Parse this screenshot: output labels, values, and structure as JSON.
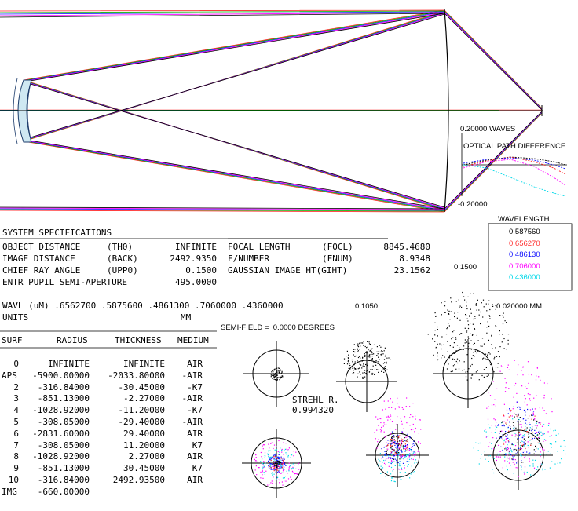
{
  "opd": {
    "top_label": "0.20000 WAVES",
    "title": "OPTICAL PATH DIFFERENCE",
    "bottom_label": "-0.20000"
  },
  "wavelength": {
    "title": "WAVELENGTH",
    "items": [
      {
        "value": "0.587560",
        "color": "#000000"
      },
      {
        "value": "0.656270",
        "color": "#ff3030"
      },
      {
        "value": "0.486130",
        "color": "#1010ff"
      },
      {
        "value": "0.706000",
        "color": "#ff00ff"
      },
      {
        "value": "0.436000",
        "color": "#00d8e8"
      }
    ]
  },
  "specs": {
    "title": "SYSTEM SPECIFICATIONS",
    "rows": [
      {
        "label": "OBJECT DISTANCE",
        "code": "(TH0)",
        "value": "INFINITE",
        "label2": "FOCAL LENGTH",
        "code2": "(FOCL)",
        "value2": "8845.4680"
      },
      {
        "label": "IMAGE DISTANCE",
        "code": "(BACK)",
        "value": "2492.9350",
        "label2": "F/NUMBER",
        "code2": "(FNUM)",
        "value2": "8.9348"
      },
      {
        "label": "CHIEF RAY ANGLE",
        "code": "(UPP0)",
        "value": "0.1500",
        "label2": "GAUSSIAN IMAGE HT(GIHT)",
        "code2": "",
        "value2": "23.1562"
      },
      {
        "label": "ENTR PUPIL SEMI-APERTURE",
        "code": "",
        "value": "495.0000",
        "label2": "",
        "code2": "",
        "value2": ""
      }
    ],
    "wavl": "WAVL (uM) .6562700 .5875600 .4861300 .7060000 .4360000",
    "units_label": "UNITS",
    "units_value": "MM"
  },
  "surf_table": {
    "headers": [
      "SURF",
      "RADIUS",
      "THICKNESS",
      "MEDIUM"
    ],
    "rows": [
      [
        "0",
        "INFINITE",
        "INFINITE",
        "AIR"
      ],
      [
        "APS",
        "-5900.00000",
        "-2033.80000",
        "-AIR"
      ],
      [
        "2",
        "-316.84000",
        "-30.45000",
        "-K7"
      ],
      [
        "3",
        "-851.13000",
        "-2.27000",
        "-AIR"
      ],
      [
        "4",
        "-1028.92000",
        "-11.20000",
        "-K7"
      ],
      [
        "5",
        "-308.05000",
        "-29.40000",
        "-AIR"
      ],
      [
        "6",
        "-2831.60000",
        "29.40000",
        "AIR"
      ],
      [
        "7",
        "-308.05000",
        "11.20000",
        "K7"
      ],
      [
        "8",
        "-1028.92000",
        "2.27000",
        "AIR"
      ],
      [
        "9",
        "-851.13000",
        "30.45000",
        "K7"
      ],
      [
        "10",
        "-316.84000",
        "2492.93500",
        "AIR"
      ],
      [
        "IMG",
        "-660.00000",
        "",
        ""
      ]
    ]
  },
  "spots": {
    "semi_field": "SEMI-FIELD =  0.0000 DEGREES",
    "field_mid": "0.1050",
    "field_top": "0.1500",
    "scale": "0.020000 MM",
    "strehl_label": "STREHL R.",
    "strehl_value": "0.994320"
  }
}
